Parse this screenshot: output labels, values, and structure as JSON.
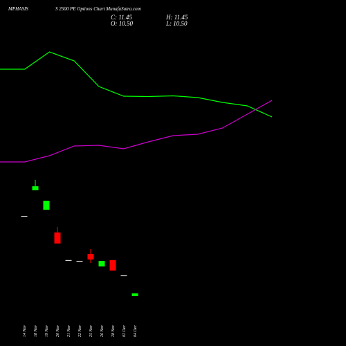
{
  "chart_data": [
    {
      "type": "candlestick",
      "title": "MPHASIS",
      "subtitle": "S 2500 PE Options Chart MunafaSutra.com",
      "ohlc_labels": [
        "C: 11.45",
        "H: 11.45",
        "O: 10.50",
        "L: 10.50"
      ],
      "categories": [
        "14 Nov",
        "18 Nov",
        "19 Nov",
        "20 Nov",
        "21 Nov",
        "22 Nov",
        "25 Nov",
        "26 Nov",
        "28 Nov",
        "02 Dec",
        "04 Dec"
      ],
      "open": [
        38.1,
        46.9,
        40.2,
        32.4,
        22.9,
        22.6,
        25.0,
        20.7,
        22.9,
        17.6,
        10.5
      ],
      "high": [
        38.1,
        50.5,
        43.3,
        34.3,
        22.9,
        22.6,
        26.7,
        22.6,
        22.9,
        17.6,
        11.45
      ],
      "low": [
        38.1,
        46.9,
        40.2,
        28.6,
        22.9,
        22.6,
        21.9,
        20.7,
        19.3,
        17.6,
        10.5
      ],
      "close": [
        38.1,
        48.3,
        43.3,
        28.6,
        22.9,
        22.6,
        23.1,
        22.6,
        19.3,
        17.6,
        11.45
      ],
      "up_color": "#00ff00",
      "down_color": "#ff0000",
      "flat_color": "#ffffff",
      "ylim": [
        5,
        55
      ]
    },
    {
      "type": "line",
      "categories": [
        null,
        null,
        null,
        null,
        null,
        null,
        null,
        null,
        null,
        null,
        null,
        null
      ],
      "series": [
        {
          "color": "#00ff00",
          "values": [
            75,
            75,
            87.5,
            81,
            62.5,
            55.5,
            55.25,
            55.75,
            54.5,
            51,
            48.5,
            40.5
          ]
        },
        {
          "color": "#cc00cc",
          "values": [
            8,
            8,
            12.5,
            19.5,
            20,
            17.5,
            22.5,
            27,
            28,
            32.5,
            42.5,
            52.5
          ]
        }
      ],
      "ylim": [
        0,
        100
      ]
    }
  ]
}
